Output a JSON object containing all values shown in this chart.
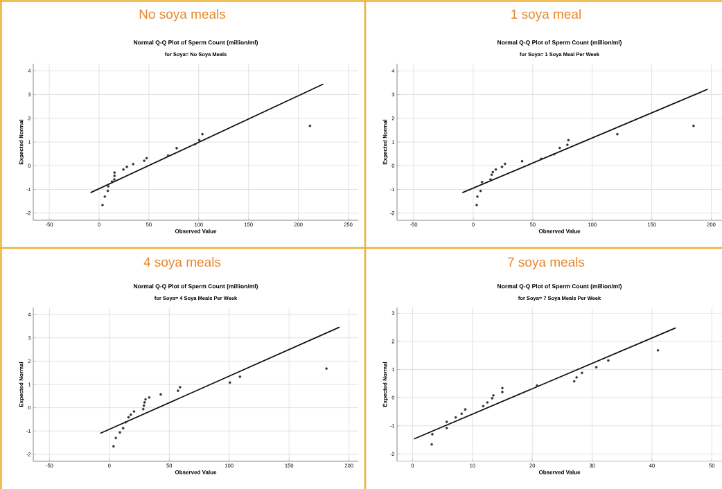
{
  "chart_data": [
    {
      "type": "scatter",
      "title": "No soya meals",
      "subtitle": "Normal Q-Q Plot of Sperm Count (million/ml)",
      "annotations": [
        "for Soya= No Soya Meals"
      ],
      "xlabel": "Observed Value",
      "ylabel": "Expected Normal",
      "xlim": [
        -66,
        260
      ],
      "ylim": [
        -2.3,
        4.3
      ],
      "xticks": [
        -50,
        0,
        50,
        100,
        150,
        200,
        250
      ],
      "yticks": [
        -2,
        -1,
        0,
        1,
        2,
        3,
        4
      ],
      "grid": true,
      "series": [
        {
          "type": "scatter",
          "marker": "circle",
          "color": "#333333",
          "x": [
            3.5,
            5.8,
            8.8,
            9.3,
            13,
            15.3,
            15.5,
            15.5,
            24.4,
            27.9,
            34.2,
            45.3,
            47.7,
            69.3,
            77.9,
            96.5,
            100.5,
            103.7,
            211.6
          ],
          "values": [
            -1.66,
            -1.3,
            -1.06,
            -0.87,
            -0.67,
            -0.58,
            -0.43,
            -0.29,
            -0.16,
            -0.05,
            0.07,
            0.21,
            0.32,
            0.43,
            0.74,
            0.91,
            1.08,
            1.33,
            1.68
          ]
        },
        {
          "type": "line",
          "color": "#111111",
          "x": [
            -8.1,
            224.4
          ],
          "values": [
            -1.13,
            3.43
          ]
        }
      ]
    },
    {
      "type": "scatter",
      "title": "1 soya meal",
      "subtitle": "Normal Q-Q Plot of Sperm Count (million/ml)",
      "annotations": [
        "for Soya= 1 Soya Meal Per Week"
      ],
      "xlabel": "Observed Value",
      "ylabel": "Expected Normal",
      "xlim": [
        -64,
        209
      ],
      "ylim": [
        -2.3,
        4.3
      ],
      "xticks": [
        -50,
        0,
        50,
        100,
        150,
        200
      ],
      "yticks": [
        -2,
        -1,
        0,
        1,
        2,
        3,
        4
      ],
      "grid": true,
      "series": [
        {
          "type": "scatter",
          "marker": "circle",
          "color": "#333333",
          "x": [
            2.9,
            3.5,
            6.2,
            7.4,
            14.5,
            15.5,
            16.5,
            19.0,
            24.2,
            26.7,
            41.1,
            57.2,
            67.8,
            72.7,
            79.1,
            80.0,
            121.1,
            185.1
          ],
          "values": [
            -1.66,
            -1.3,
            -1.06,
            -0.69,
            -0.58,
            -0.38,
            -0.27,
            -0.16,
            -0.05,
            0.08,
            0.19,
            0.29,
            0.48,
            0.75,
            0.88,
            1.08,
            1.33,
            1.68
          ]
        },
        {
          "type": "line",
          "color": "#111111",
          "x": [
            -8.7,
            196.7
          ],
          "values": [
            -1.13,
            3.22
          ]
        }
      ]
    },
    {
      "type": "scatter",
      "title": "4 soya meals",
      "subtitle": "Normal Q-Q Plot of Sperm Count (million/ml)",
      "annotations": [
        "for Soya= 4 Soya Meals Per Week"
      ],
      "xlabel": "Observed Value",
      "ylabel": "Expected Normal",
      "xlim": [
        -63.5,
        207.7
      ],
      "ylim": [
        -2.3,
        4.3
      ],
      "xticks": [
        -50,
        0,
        50,
        100,
        150,
        200
      ],
      "yticks": [
        -2,
        -1,
        0,
        1,
        2,
        3,
        4
      ],
      "grid": true,
      "series": [
        {
          "type": "scatter",
          "marker": "circle",
          "color": "#333333",
          "x": [
            3.5,
            5.4,
            8.8,
            11.5,
            13.5,
            16.0,
            17.9,
            20.6,
            28.3,
            28.8,
            29.4,
            30.2,
            33.3,
            42.9,
            57.3,
            59.0,
            100.6,
            109.0,
            181.2
          ],
          "values": [
            -1.66,
            -1.3,
            -1.06,
            -0.88,
            -0.63,
            -0.41,
            -0.3,
            -0.16,
            -0.06,
            0.09,
            0.23,
            0.36,
            0.44,
            0.57,
            0.73,
            0.88,
            1.08,
            1.33,
            1.68
          ]
        },
        {
          "type": "line",
          "color": "#111111",
          "x": [
            -7.1,
            191.7
          ],
          "values": [
            -1.09,
            3.45
          ]
        }
      ]
    },
    {
      "type": "scatter",
      "title": "7 soya meals",
      "subtitle": "Normal Q-Q Plot of Sperm Count (million/ml)",
      "annotations": [
        "for Soya= 7 Soya Meals Per Week"
      ],
      "xlabel": "Observed Value",
      "ylabel": "Expected Normal",
      "xlim": [
        -2.6,
        51.7
      ],
      "ylim": [
        -2.26,
        3.2
      ],
      "xticks": [
        0,
        10,
        20,
        30,
        40,
        50
      ],
      "yticks": [
        -2,
        -1,
        0,
        1,
        2,
        3
      ],
      "grid": true,
      "series": [
        {
          "type": "scatter",
          "marker": "circle",
          "color": "#333333",
          "x": [
            3.2,
            3.3,
            5.7,
            5.7,
            7.2,
            8.2,
            8.8,
            11.8,
            12.5,
            13.3,
            13.5,
            15.0,
            15.0,
            20.8,
            27.0,
            27.4,
            28.3,
            30.7,
            32.7,
            41.0
          ],
          "values": [
            -1.66,
            -1.3,
            -1.08,
            -0.86,
            -0.7,
            -0.57,
            -0.42,
            -0.3,
            -0.17,
            -0.02,
            0.08,
            0.2,
            0.34,
            0.43,
            0.58,
            0.72,
            0.88,
            1.08,
            1.32,
            1.68
          ]
        },
        {
          "type": "line",
          "color": "#111111",
          "x": [
            0.3,
            43.9
          ],
          "values": [
            -1.46,
            2.47
          ]
        }
      ]
    }
  ]
}
